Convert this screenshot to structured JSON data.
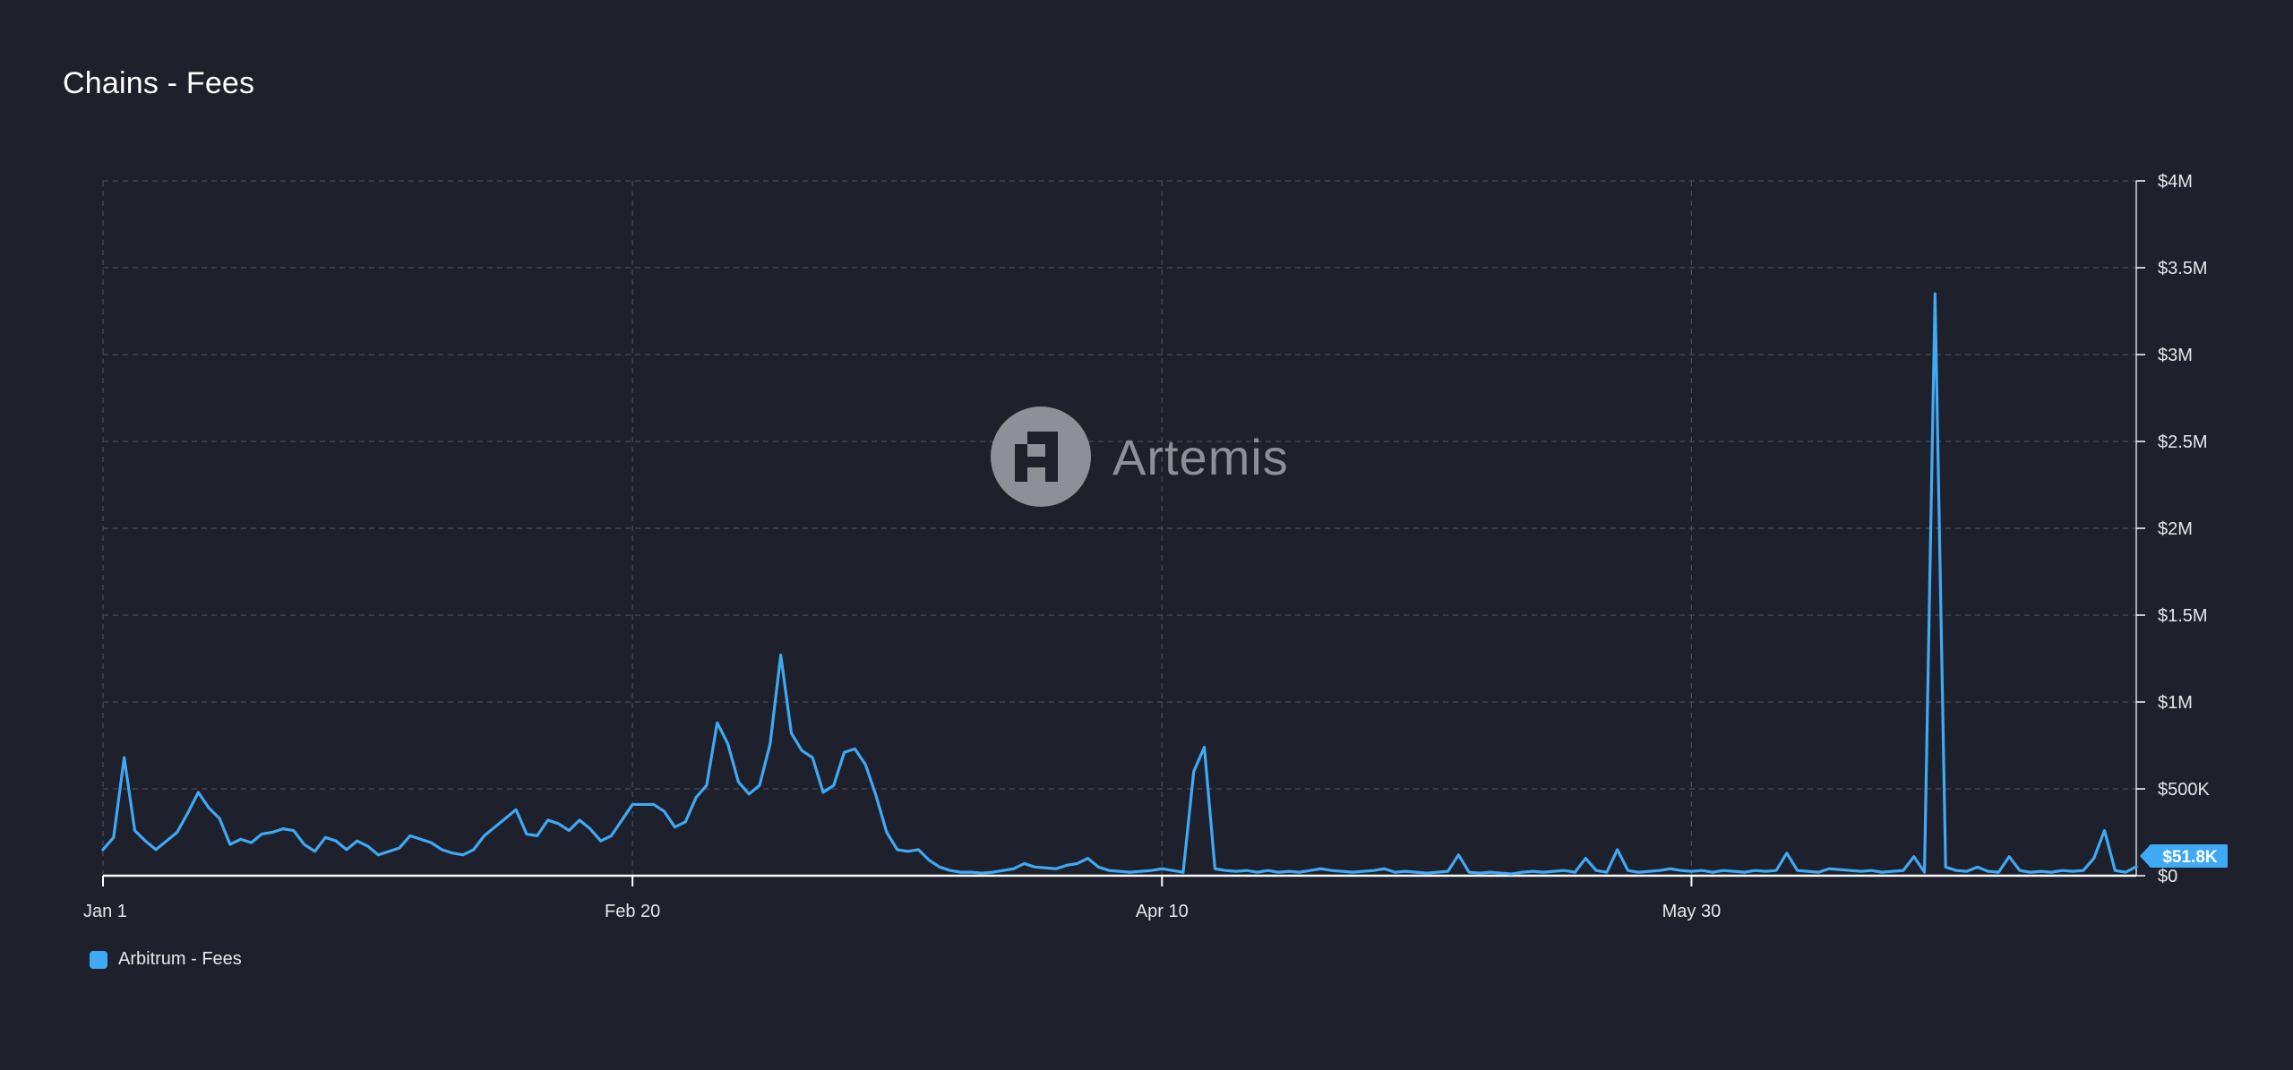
{
  "header": {
    "title": "Chains - Fees"
  },
  "watermark": {
    "brand": "Artemis"
  },
  "legend": {
    "items": [
      {
        "label": "Arbitrum - Fees",
        "color": "#3fa9f5"
      }
    ]
  },
  "last_value_label": "$51.8K",
  "colors": {
    "background": "#1e202c",
    "series": "#3fa9f5",
    "grid": "#4a4d5a"
  },
  "chart_data": {
    "type": "line",
    "title": "Chains - Fees",
    "xlabel": "",
    "ylabel": "",
    "ylim": [
      0,
      4000000
    ],
    "y_ticks": [
      {
        "value": 0,
        "label": "$0"
      },
      {
        "value": 500000,
        "label": "$500K"
      },
      {
        "value": 1000000,
        "label": "$1M"
      },
      {
        "value": 1500000,
        "label": "$1.5M"
      },
      {
        "value": 2000000,
        "label": "$2M"
      },
      {
        "value": 2500000,
        "label": "$2.5M"
      },
      {
        "value": 3000000,
        "label": "$3M"
      },
      {
        "value": 3500000,
        "label": "$3.5M"
      },
      {
        "value": 4000000,
        "label": "$4M"
      }
    ],
    "x_ticks": [
      {
        "date": "Jan 1",
        "label": "Jan 1"
      },
      {
        "date": "Feb 20",
        "label": "Feb 20"
      },
      {
        "date": "Apr 10",
        "label": "Apr 10"
      },
      {
        "date": "May 30",
        "label": "May 30"
      }
    ],
    "grid": true,
    "legend_position": "bottom-left",
    "series": [
      {
        "name": "Arbitrum - Fees",
        "color": "#3fa9f5",
        "values": [
          150000,
          220000,
          680000,
          260000,
          200000,
          150000,
          200000,
          250000,
          360000,
          480000,
          390000,
          330000,
          180000,
          210000,
          190000,
          240000,
          250000,
          270000,
          260000,
          180000,
          140000,
          220000,
          200000,
          150000,
          200000,
          170000,
          120000,
          140000,
          160000,
          230000,
          210000,
          190000,
          150000,
          130000,
          120000,
          150000,
          230000,
          280000,
          330000,
          380000,
          240000,
          230000,
          320000,
          300000,
          260000,
          320000,
          270000,
          200000,
          230000,
          320000,
          410000,
          410000,
          410000,
          370000,
          280000,
          310000,
          450000,
          520000,
          880000,
          760000,
          540000,
          470000,
          520000,
          760000,
          1270000,
          820000,
          720000,
          680000,
          480000,
          520000,
          710000,
          730000,
          640000,
          460000,
          250000,
          150000,
          140000,
          150000,
          90000,
          50000,
          30000,
          20000,
          20000,
          15000,
          20000,
          30000,
          40000,
          70000,
          50000,
          45000,
          40000,
          60000,
          70000,
          100000,
          50000,
          30000,
          25000,
          20000,
          25000,
          30000,
          40000,
          30000,
          20000,
          600000,
          740000,
          40000,
          30000,
          25000,
          30000,
          20000,
          30000,
          20000,
          25000,
          20000,
          30000,
          40000,
          30000,
          25000,
          20000,
          25000,
          30000,
          40000,
          20000,
          25000,
          20000,
          15000,
          20000,
          25000,
          120000,
          20000,
          15000,
          20000,
          15000,
          10000,
          20000,
          25000,
          20000,
          25000,
          30000,
          20000,
          100000,
          30000,
          20000,
          150000,
          30000,
          20000,
          25000,
          30000,
          40000,
          30000,
          25000,
          30000,
          20000,
          30000,
          25000,
          20000,
          30000,
          25000,
          30000,
          130000,
          30000,
          25000,
          20000,
          40000,
          35000,
          30000,
          25000,
          30000,
          20000,
          25000,
          30000,
          110000,
          20000,
          3350000,
          50000,
          30000,
          25000,
          50000,
          25000,
          20000,
          110000,
          30000,
          20000,
          25000,
          20000,
          30000,
          25000,
          30000,
          100000,
          260000,
          30000,
          20000,
          51800
        ]
      }
    ]
  }
}
